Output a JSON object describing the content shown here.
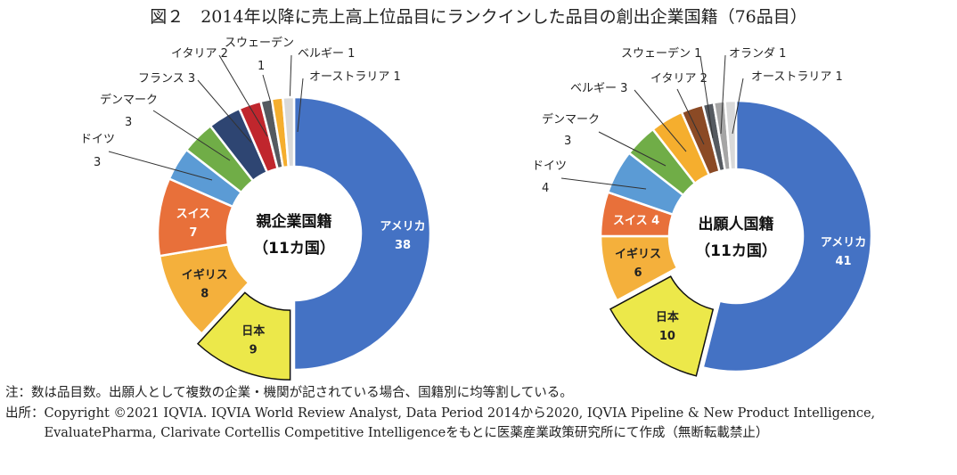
{
  "title": "図２　2014年以降に売上高上位品目にランクインした品目の創出企業国籍（76品目）",
  "chart_data": [
    {
      "type": "pie",
      "donut": true,
      "center_label": [
        "親企業国籍",
        "（11カ国）"
      ],
      "categories": [
        "アメリカ",
        "日本",
        "イギリス",
        "スイス",
        "ドイツ",
        "デンマーク",
        "フランス",
        "イタリア",
        "スウェーデン",
        "ベルギー",
        "オーストラリア"
      ],
      "values": [
        38,
        9,
        8,
        7,
        3,
        3,
        3,
        2,
        1,
        1,
        1
      ],
      "colors": [
        "#4472C4",
        "#ECE84A",
        "#F4B03C",
        "#E8703A",
        "#5B9BD5",
        "#70AD47",
        "#2E4572",
        "#C0262D",
        "#555A60",
        "#F5AE2E",
        "#D9D9D9"
      ],
      "exploded": "日本"
    },
    {
      "type": "pie",
      "donut": true,
      "center_label": [
        "出願人国籍",
        "（11カ国）"
      ],
      "categories": [
        "アメリカ",
        "日本",
        "イギリス",
        "スイス",
        "ドイツ",
        "デンマーク",
        "ベルギー",
        "イタリア",
        "スウェーデン",
        "オランダ",
        "オーストラリア"
      ],
      "values": [
        41,
        10,
        6,
        4,
        4,
        3,
        3,
        2,
        1,
        1,
        1
      ],
      "colors": [
        "#4472C4",
        "#ECE84A",
        "#F4B03C",
        "#E8703A",
        "#5B9BD5",
        "#70AD47",
        "#F5AE2E",
        "#8B4A25",
        "#555A60",
        "#A5A5A5",
        "#D9D9D9"
      ],
      "exploded": "日本"
    }
  ],
  "notes": {
    "note": "注：数は品目数。出願人として複数の企業・機関が記されている場合、国籍別に均等割している。",
    "source_label": "出所：",
    "source": "Copyright ©2021 IQVIA. IQVIA World Review Analyst, Data Period 2014から2020, IQVIA Pipeline & New Product Intelligence, EvaluatePharma, Clarivate Cortellis Competitive Intelligenceをもとに医薬産業政策研究所にて作成（無断転載禁止）"
  }
}
